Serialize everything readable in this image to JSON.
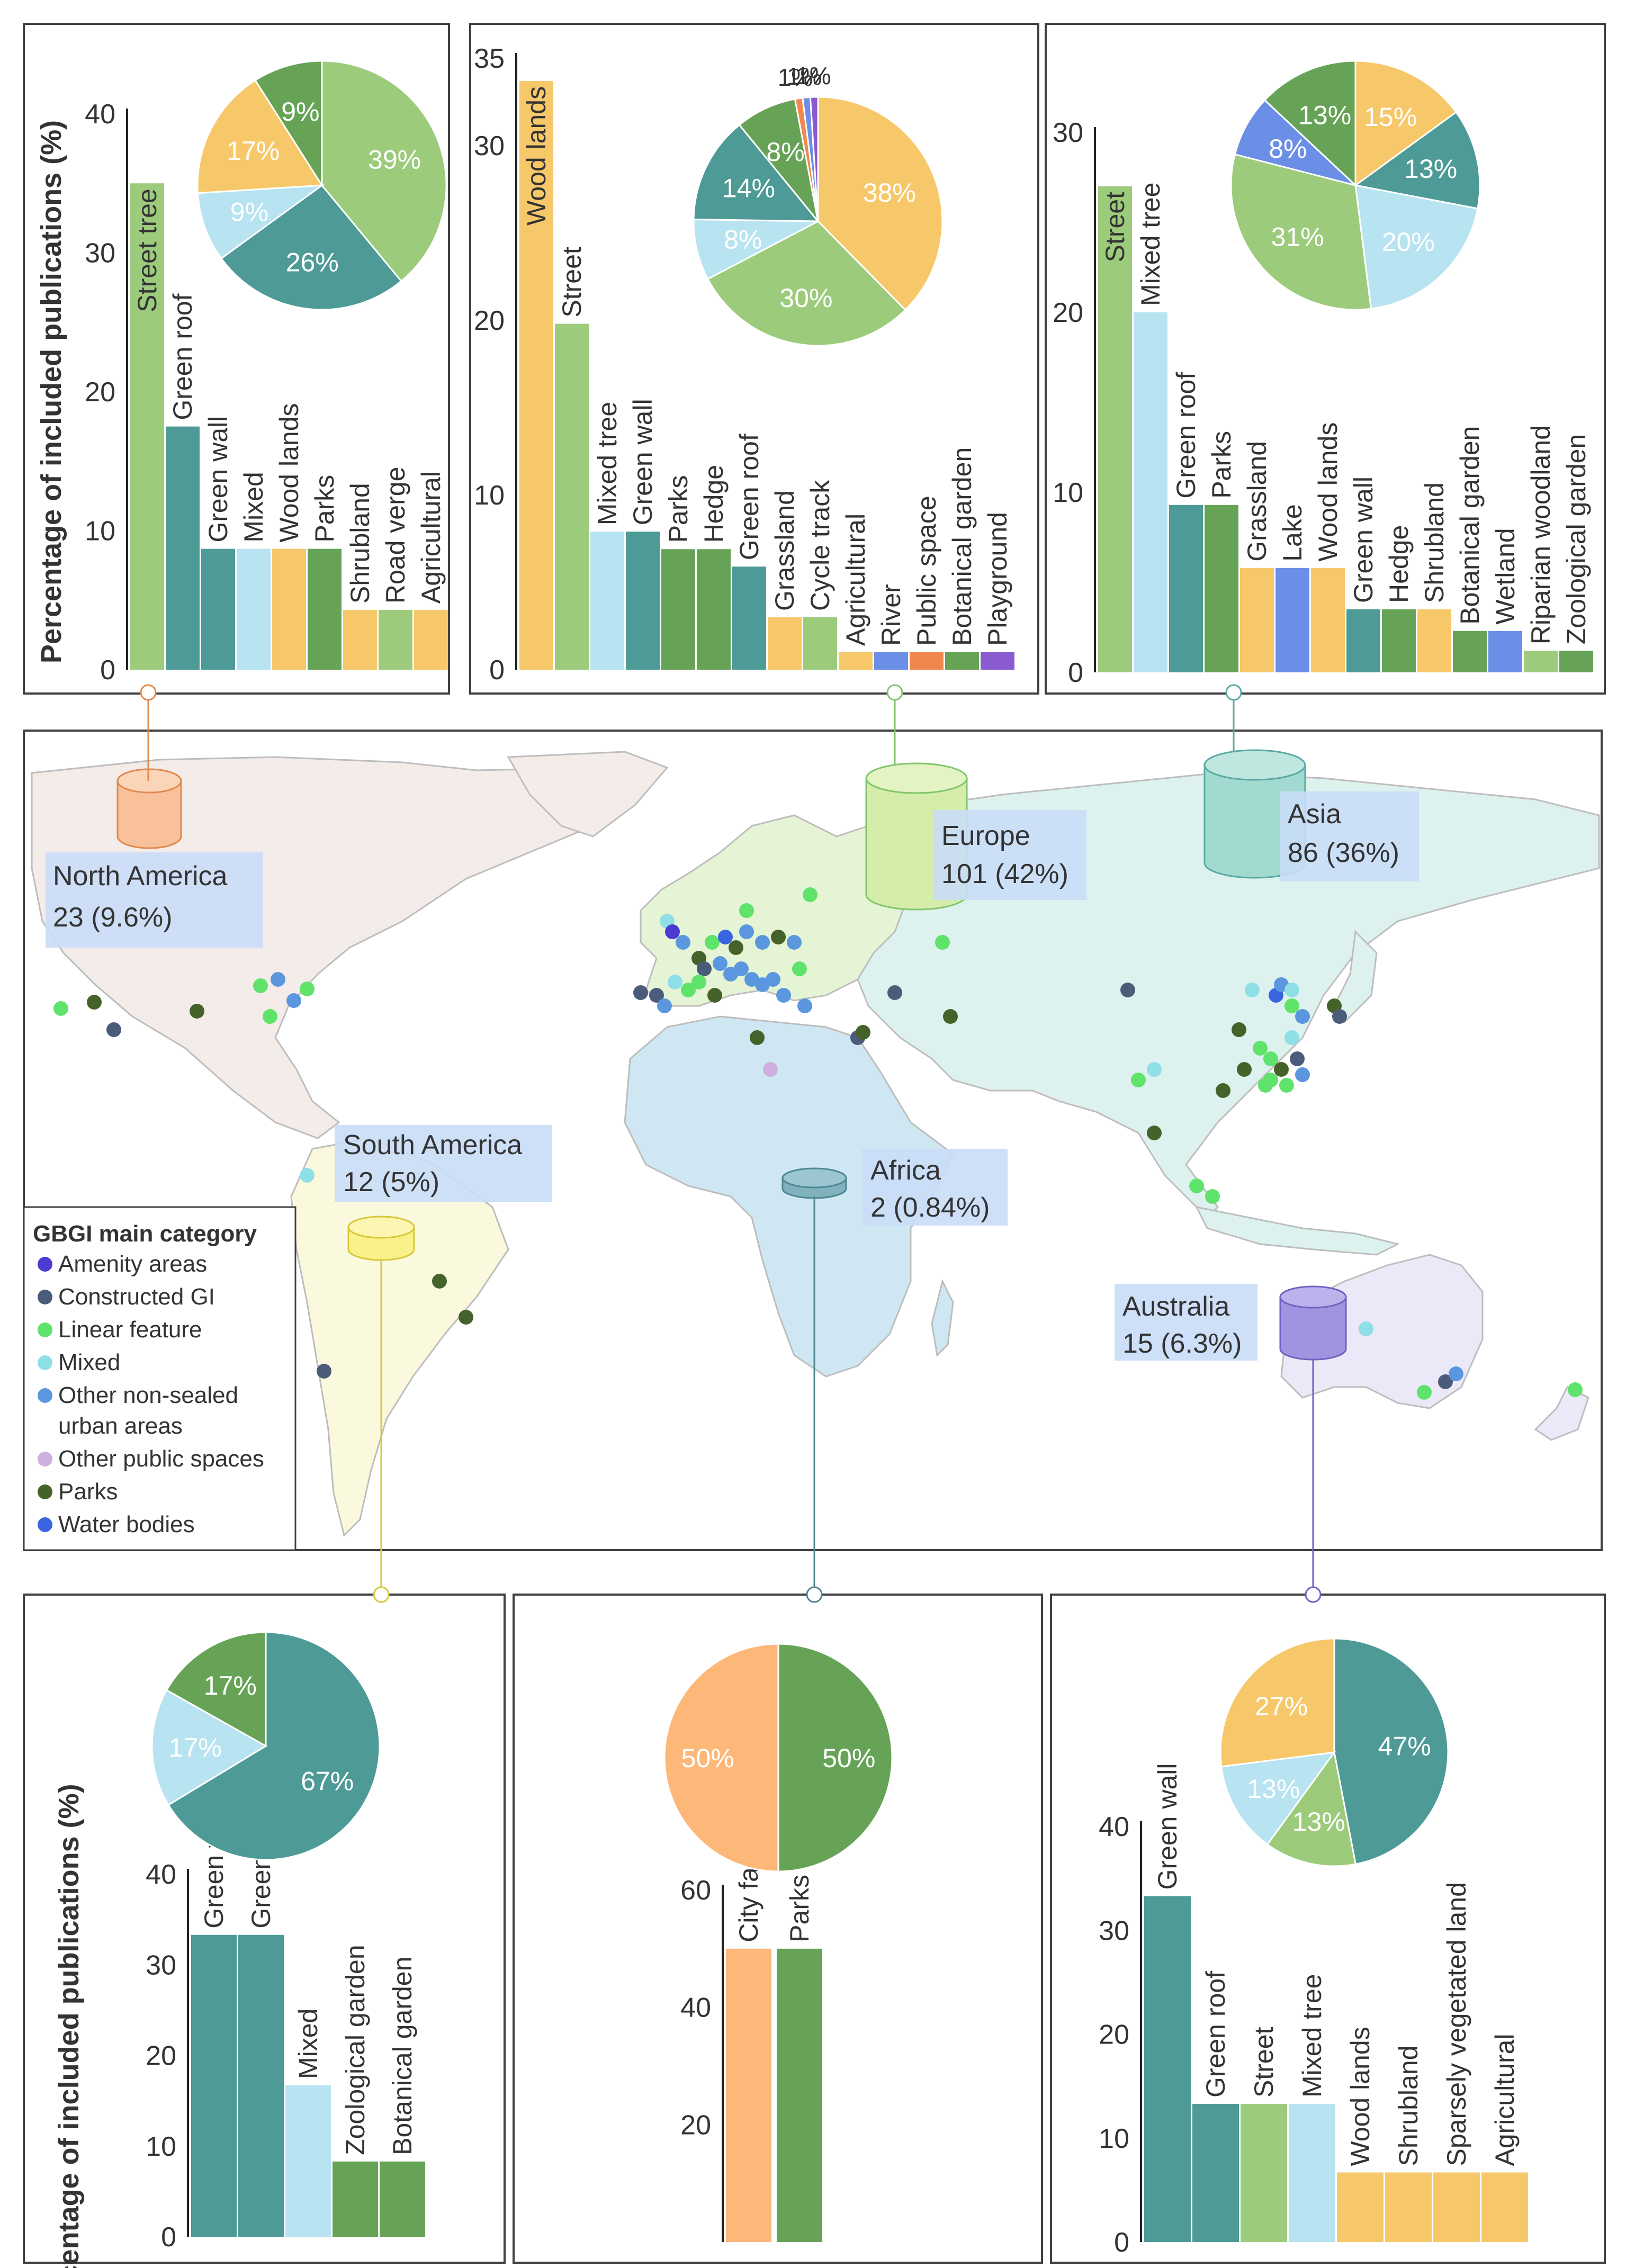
{
  "colors": {
    "yellow": "#f7c86a",
    "lightgreen": "#9ccb7c",
    "teal": "#4e9a96",
    "lightblue": "#b8e3f0",
    "darkgreen": "#67a356",
    "blue": "#6b8fe6",
    "orange": "#f0874e",
    "purple": "#8a5ad0",
    "peach": "#fdb879",
    "frame": "#404040",
    "labelbox": "#c9ddf7"
  },
  "chart_data": [
    {
      "id": "north-america",
      "type": "bar",
      "ylabel": "Percentage of included publications (%)",
      "ylim": [
        0,
        40
      ],
      "yticks": [
        0,
        10,
        20,
        30,
        40
      ],
      "categories": [
        "Street tree",
        "Green roof",
        "Green wall",
        "Mixed",
        "Wood lands",
        "Parks",
        "Shrubland",
        "Road verge",
        "Agricultural"
      ],
      "values": [
        35,
        17.5,
        8.7,
        8.7,
        8.7,
        8.7,
        4.3,
        4.3,
        4.3
      ],
      "bar_colors": [
        "lightgreen",
        "teal",
        "teal",
        "lightblue",
        "yellow",
        "darkgreen",
        "yellow",
        "lightgreen",
        "yellow"
      ],
      "pie": {
        "labels": [
          "39%",
          "26%",
          "9%",
          "17%",
          "9%"
        ],
        "values": [
          39,
          26,
          9,
          17,
          9
        ],
        "colors": [
          "lightgreen",
          "teal",
          "lightblue",
          "yellow",
          "darkgreen"
        ]
      }
    },
    {
      "id": "europe",
      "type": "bar",
      "ylim": [
        0,
        35
      ],
      "yticks": [
        0,
        10,
        20,
        30,
        35
      ],
      "categories": [
        "Wood lands",
        "Street",
        "Mixed tree",
        "Green wall",
        "Parks",
        "Hedge",
        "Green roof",
        "Grassland",
        "Cycle track",
        "Agricultural",
        "River",
        "Public space",
        "Botanical garden",
        "Playground"
      ],
      "values": [
        33.7,
        19.8,
        7.9,
        7.9,
        6.9,
        6.9,
        5.9,
        3,
        3,
        1,
        1,
        1,
        1,
        1
      ],
      "bar_colors": [
        "yellow",
        "lightgreen",
        "lightblue",
        "teal",
        "darkgreen",
        "darkgreen",
        "teal",
        "yellow",
        "lightgreen",
        "yellow",
        "blue",
        "orange",
        "darkgreen",
        "purple"
      ],
      "pie": {
        "labels": [
          "38%",
          "30%",
          "8%",
          "14%",
          "8%",
          "1%",
          "1%",
          "1%"
        ],
        "values": [
          38,
          30,
          8,
          14,
          8,
          1,
          1,
          1
        ],
        "colors": [
          "yellow",
          "lightgreen",
          "lightblue",
          "teal",
          "darkgreen",
          "orange",
          "blue",
          "purple"
        ]
      }
    },
    {
      "id": "asia",
      "type": "bar",
      "ylim": [
        0,
        30
      ],
      "yticks": [
        0,
        10,
        20,
        30
      ],
      "categories": [
        "Street",
        "Mixed tree",
        "Green roof",
        "Parks",
        "Grassland",
        "Lake",
        "Wood lands",
        "Green wall",
        "Hedge",
        "Shrubland",
        "Botanical garden",
        "Wetland",
        "Riparian woodland",
        "Zoological garden"
      ],
      "values": [
        27,
        20,
        9.3,
        9.3,
        5.8,
        5.8,
        5.8,
        3.5,
        3.5,
        3.5,
        2.3,
        2.3,
        1.2,
        1.2
      ],
      "bar_colors": [
        "lightgreen",
        "lightblue",
        "teal",
        "darkgreen",
        "yellow",
        "blue",
        "yellow",
        "teal",
        "darkgreen",
        "yellow",
        "darkgreen",
        "blue",
        "lightgreen",
        "darkgreen"
      ],
      "pie": {
        "labels": [
          "15%",
          "13%",
          "20%",
          "31%",
          "8%",
          "13%"
        ],
        "values": [
          15,
          13,
          20,
          31,
          8,
          13
        ],
        "colors": [
          "yellow",
          "teal",
          "lightblue",
          "lightgreen",
          "blue",
          "darkgreen"
        ]
      }
    },
    {
      "id": "south-america",
      "type": "bar",
      "ylabel": "Percentage of included publications (%)",
      "ylim": [
        0,
        40
      ],
      "yticks": [
        0,
        10,
        20,
        30,
        40
      ],
      "categories": [
        "Green wall",
        "Green roof",
        "Mixed",
        "Zoological garden",
        "Botanical garden"
      ],
      "values": [
        33.3,
        33.3,
        16.7,
        8.3,
        8.3
      ],
      "bar_colors": [
        "teal",
        "teal",
        "lightblue",
        "darkgreen",
        "darkgreen"
      ],
      "pie": {
        "labels": [
          "67%",
          "17%",
          "17%"
        ],
        "values": [
          67,
          17,
          17
        ],
        "colors": [
          "teal",
          "lightblue",
          "darkgreen"
        ]
      }
    },
    {
      "id": "africa",
      "type": "bar",
      "ylim": [
        0,
        60
      ],
      "yticks": [
        20,
        40,
        60
      ],
      "categories": [
        "City farm",
        "Parks"
      ],
      "values": [
        50,
        50
      ],
      "bar_colors": [
        "peach",
        "darkgreen"
      ],
      "pie": {
        "labels": [
          "50%",
          "50%"
        ],
        "values": [
          50,
          50
        ],
        "colors": [
          "darkgreen",
          "peach"
        ]
      }
    },
    {
      "id": "australia",
      "type": "bar",
      "ylim": [
        0,
        40
      ],
      "yticks": [
        0,
        10,
        20,
        30,
        40
      ],
      "categories": [
        "Green wall",
        "Green roof",
        "Street",
        "Mixed tree",
        "Wood lands",
        "Shrubland",
        "Sparsely vegetated land",
        "Agricultural"
      ],
      "values": [
        33.3,
        13.3,
        13.3,
        13.3,
        6.7,
        6.7,
        6.7,
        6.7
      ],
      "bar_colors": [
        "teal",
        "teal",
        "lightgreen",
        "lightblue",
        "yellow",
        "yellow",
        "yellow",
        "yellow"
      ],
      "pie": {
        "labels": [
          "47%",
          "13%",
          "13%",
          "27%"
        ],
        "values": [
          47,
          13,
          13,
          27
        ],
        "colors": [
          "teal",
          "lightgreen",
          "lightblue",
          "yellow"
        ]
      }
    }
  ],
  "map": {
    "regions": [
      {
        "id": "north-america",
        "name": "North America",
        "stat": "23 (9.6%)",
        "fill": "#f4ece8",
        "cyl": "#f9c19b"
      },
      {
        "id": "europe",
        "name": "Europe",
        "stat": "101 (42%)",
        "fill": "#e6f4d6",
        "cyl": "#d6ecab"
      },
      {
        "id": "asia",
        "name": "Asia",
        "stat": "86 (36%)",
        "fill": "#ddf2ee",
        "cyl": "#a2d9d1"
      },
      {
        "id": "south-america",
        "name": "South America",
        "stat": "12 (5%)",
        "fill": "#fbf9dd",
        "cyl": "#fbf18a"
      },
      {
        "id": "africa",
        "name": "Africa",
        "stat": "2 (0.84%)",
        "fill": "#cfe7f2",
        "cyl": "#7fb2bd"
      },
      {
        "id": "australia",
        "name": "Australia",
        "stat": "15 (6.3%)",
        "fill": "#ebe8f8",
        "cyl": "#9f94e0"
      }
    ],
    "legend": {
      "title": "GBGI main category",
      "items": [
        {
          "label": "Amenity areas",
          "color": "#4b3bd0"
        },
        {
          "label": "Constructed GI",
          "color": "#4b5c7a"
        },
        {
          "label": "Linear feature",
          "color": "#5fe36b"
        },
        {
          "label": "Mixed",
          "color": "#8ee0e6"
        },
        {
          "label": "Other non-sealed",
          "label2": "urban areas",
          "color": "#5b97de"
        },
        {
          "label": "Other public spaces",
          "color": "#cfaee0"
        },
        {
          "label": "Parks",
          "color": "#45622a"
        },
        {
          "label": "Water bodies",
          "color": "#3a64e0"
        }
      ]
    }
  }
}
